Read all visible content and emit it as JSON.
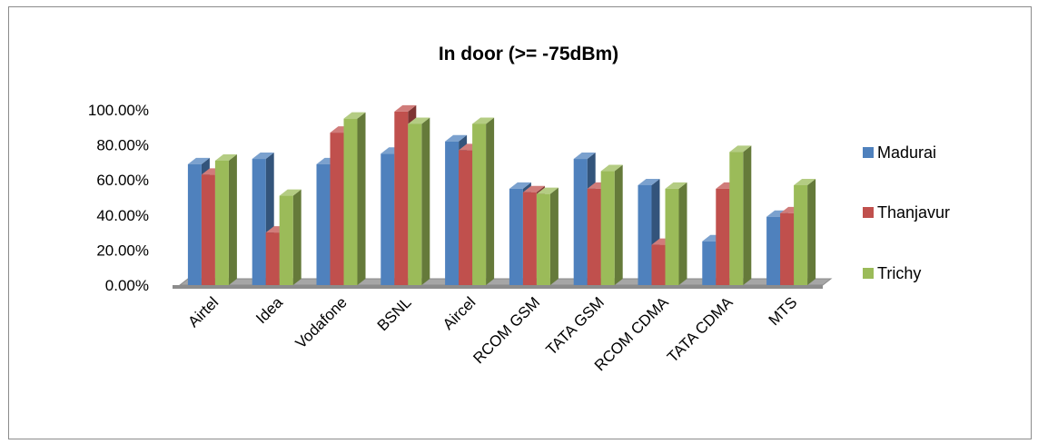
{
  "chart_data": {
    "type": "bar",
    "title": "In door (>= -75dBm)",
    "xlabel": "",
    "ylabel": "",
    "categories": [
      "Airtel",
      "Idea",
      "Vodafone",
      "BSNL",
      "Aircel",
      "RCOM GSM",
      "TATA GSM",
      "RCOM CDMA",
      "TATA CDMA",
      "MTS"
    ],
    "series": [
      {
        "name": "Madurai",
        "color": "#4f81bd",
        "values": [
          69,
          72,
          69,
          75,
          82,
          55,
          72,
          57,
          25,
          39
        ]
      },
      {
        "name": "Thanjavur",
        "color": "#c0504d",
        "values": [
          63,
          30,
          87,
          99,
          77,
          53,
          55,
          23,
          55,
          41
        ]
      },
      {
        "name": "Trichy",
        "color": "#9bbb59",
        "values": [
          71,
          51,
          95,
          92,
          92,
          52,
          65,
          55,
          76,
          57
        ]
      }
    ],
    "yticks": [
      "0.00%",
      "20.00%",
      "40.00%",
      "60.00%",
      "80.00%",
      "100.00%"
    ],
    "ylim": [
      0,
      100
    ],
    "legend_position": "right",
    "grid": false,
    "style": "3d-clustered-column"
  }
}
